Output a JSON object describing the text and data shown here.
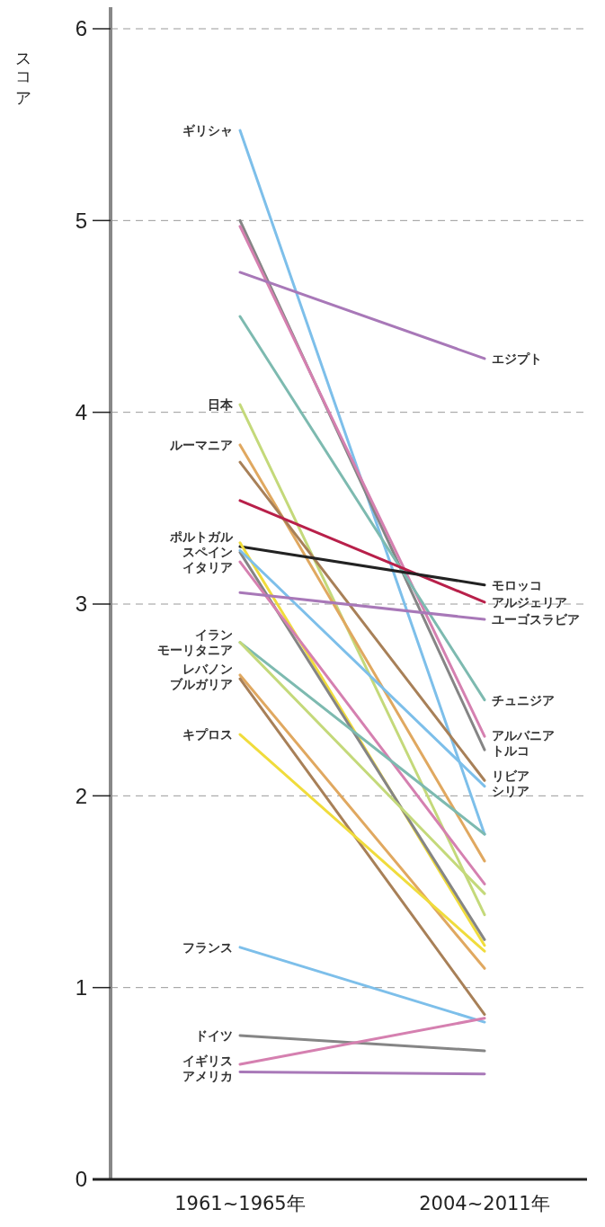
{
  "chart_data": {
    "type": "line",
    "ylabel": "スコア",
    "categories": [
      "1961~1965年",
      "2004~2011年"
    ],
    "ylim": [
      0,
      6
    ],
    "yticks": [
      0,
      1,
      2,
      3,
      4,
      5,
      6
    ],
    "grid": "y",
    "line_style": "solid",
    "marker": "none",
    "series": [
      {
        "color": "#7dbfea",
        "values": [
          5.47,
          1.8
        ]
      },
      {
        "color": "#858585",
        "values": [
          5.0,
          2.24
        ]
      },
      {
        "color": "#d580b0",
        "values": [
          4.97,
          2.31
        ]
      },
      {
        "color": "#a878b8",
        "values": [
          4.73,
          4.28
        ]
      },
      {
        "color": "#7dbab0",
        "values": [
          4.5,
          2.5
        ]
      },
      {
        "color": "#c4d97a",
        "values": [
          4.04,
          1.38
        ]
      },
      {
        "color": "#e0a860",
        "values": [
          3.83,
          1.66
        ]
      },
      {
        "color": "#a88058",
        "values": [
          3.74,
          2.08
        ]
      },
      {
        "color": "#b8204a",
        "values": [
          3.54,
          3.01
        ]
      },
      {
        "color": "#222222",
        "values": [
          3.3,
          3.1
        ]
      },
      {
        "color": "#f0dc3c",
        "values": [
          3.32,
          1.22
        ]
      },
      {
        "color": "#858585",
        "values": [
          3.27,
          1.25
        ]
      },
      {
        "color": "#7dbfea",
        "values": [
          3.28,
          2.05
        ]
      },
      {
        "color": "#d580b0",
        "values": [
          3.22,
          1.54
        ]
      },
      {
        "color": "#a878b8",
        "values": [
          3.06,
          2.92
        ]
      },
      {
        "color": "#7dbab0",
        "values": [
          2.8,
          1.8
        ]
      },
      {
        "color": "#c4d97a",
        "values": [
          2.8,
          1.49
        ]
      },
      {
        "color": "#e0a860",
        "values": [
          2.63,
          1.1
        ]
      },
      {
        "color": "#a88058",
        "values": [
          2.61,
          0.86
        ]
      },
      {
        "color": "#f0dc3c",
        "values": [
          2.32,
          1.19
        ]
      },
      {
        "color": "#7dbfea",
        "values": [
          1.21,
          0.82
        ]
      },
      {
        "color": "#858585",
        "values": [
          0.75,
          0.67
        ]
      },
      {
        "color": "#d580b0",
        "values": [
          0.6,
          0.84
        ]
      },
      {
        "color": "#a878b8",
        "values": [
          0.56,
          0.55
        ]
      }
    ],
    "annotations": [
      {
        "text": "ギリシャ",
        "x": "1961~1965年",
        "y": 5.47
      },
      {
        "text": "トルコ",
        "x": "2004~2011年",
        "y": 2.24
      },
      {
        "text": "アルバニア",
        "x": "2004~2011年",
        "y": 2.31
      },
      {
        "text": "エジプト",
        "x": "2004~2011年",
        "y": 4.28
      },
      {
        "text": "チュニジア",
        "x": "2004~2011年",
        "y": 2.5
      },
      {
        "text": "日本",
        "x": "1961~1965年",
        "y": 4.04
      },
      {
        "text": "ルーマニア",
        "x": "1961~1965年",
        "y": 3.83
      },
      {
        "text": "リビア",
        "x": "2004~2011年",
        "y": 2.08
      },
      {
        "text": "アルジェリア",
        "x": "2004~2011年",
        "y": 3.01
      },
      {
        "text": "モロッコ",
        "x": "2004~2011年",
        "y": 3.1
      },
      {
        "text": "ポルトガル",
        "x": "1961~1965年",
        "y": 3.32
      },
      {
        "text": "スペイン",
        "x": "1961~1965年",
        "y": 3.27
      },
      {
        "text": "シリア",
        "x": "2004~2011年",
        "y": 2.05
      },
      {
        "text": "イタリア",
        "x": "1961~1965年",
        "y": 3.22
      },
      {
        "text": "ユーゴスラビア",
        "x": "2004~2011年",
        "y": 2.92
      },
      {
        "text": "イラン",
        "x": "1961~1965年",
        "y": 2.8
      },
      {
        "text": "モーリタニア",
        "x": "1961~1965年",
        "y": 2.8
      },
      {
        "text": "レバノン",
        "x": "1961~1965年",
        "y": 2.63
      },
      {
        "text": "ブルガリア",
        "x": "1961~1965年",
        "y": 2.61
      },
      {
        "text": "キプロス",
        "x": "1961~1965年",
        "y": 2.32
      },
      {
        "text": "フランス",
        "x": "1961~1965年",
        "y": 1.21
      },
      {
        "text": "ドイツ",
        "x": "1961~1965年",
        "y": 0.75
      },
      {
        "text": "イギリス",
        "x": "1961~1965年",
        "y": 0.6
      },
      {
        "text": "アメリカ",
        "x": "1961~1965年",
        "y": 0.56
      }
    ]
  }
}
